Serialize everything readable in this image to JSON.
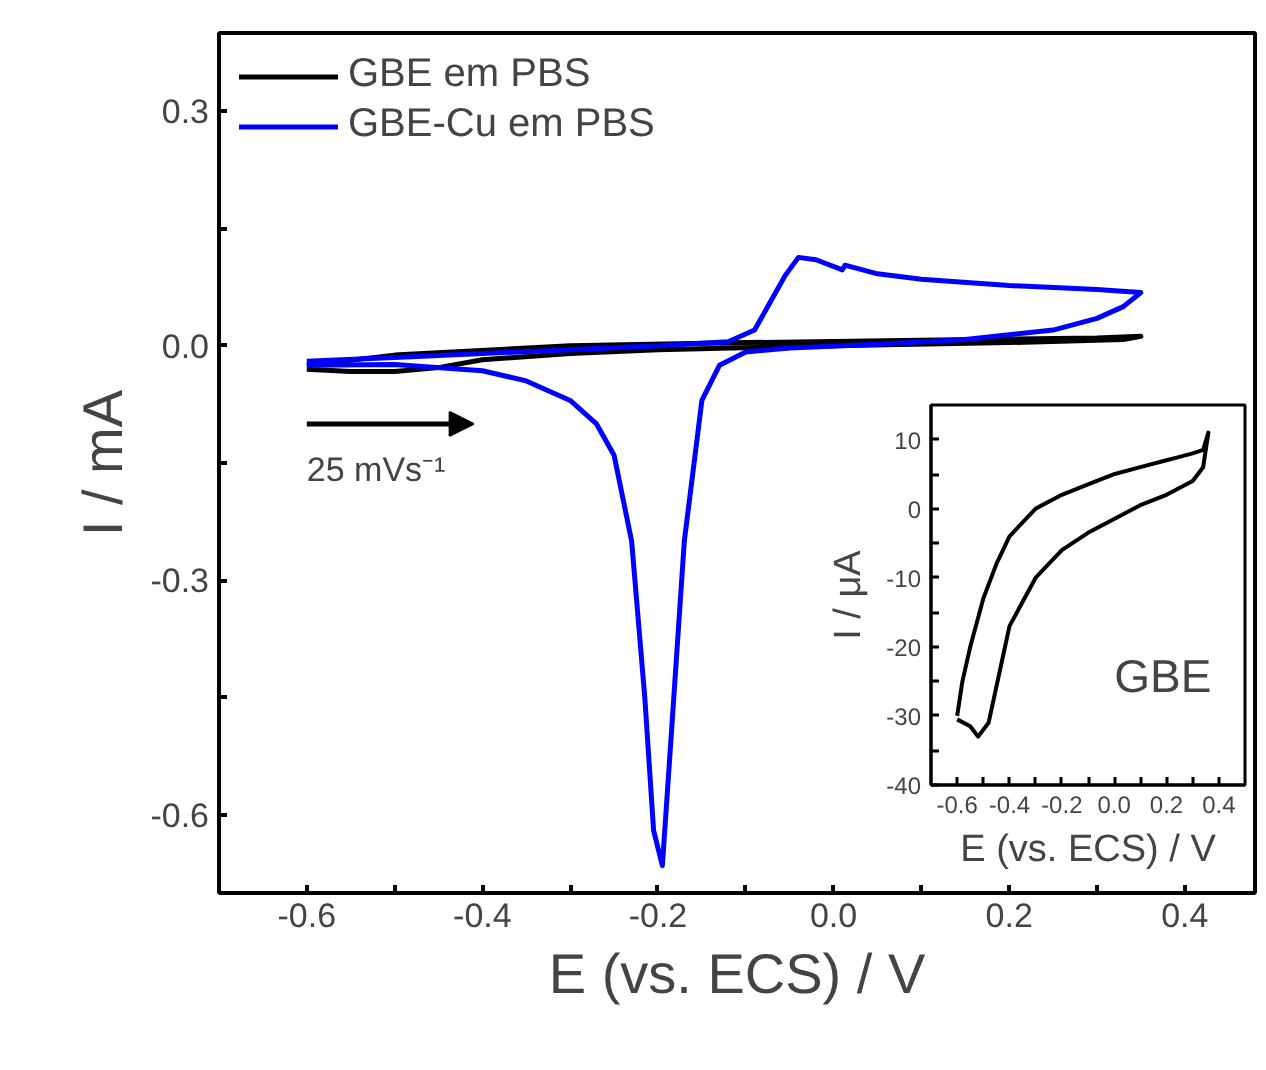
{
  "chart_data": [
    {
      "type": "line",
      "xlabel": "E (vs. ECS) / V",
      "ylabel": "I / mA",
      "legend": "top left",
      "grid": false,
      "marker": "none",
      "line_style": "solid",
      "xlim": [
        -0.7,
        0.48
      ],
      "ylim": [
        -0.7,
        0.4
      ],
      "xticks": [
        -0.6,
        {
          "value": -0.5,
          "label": null
        },
        -0.4,
        {
          "value": -0.3,
          "label": null
        },
        -0.2,
        {
          "value": -0.1,
          "label": null
        },
        {
          "value": 0,
          "label": "0.0"
        },
        {
          "value": 0.1,
          "label": null
        },
        0.2,
        {
          "value": 0.3,
          "label": null
        },
        0.4
      ],
      "yticks": [
        -0.6,
        {
          "value": -0.45,
          "label": null
        },
        -0.3,
        {
          "value": -0.15,
          "label": null
        },
        {
          "value": 0,
          "label": "0.0"
        },
        {
          "value": 0.15,
          "label": null
        },
        0.3
      ],
      "annotations": [
        "25 mVs⁻¹"
      ],
      "series": [
        {
          "name": "GBE em PBS",
          "color": "#000000",
          "x": [
            -0.6,
            -0.55,
            -0.5,
            -0.45,
            -0.4,
            -0.3,
            -0.2,
            0.0,
            0.2,
            0.33,
            0.35,
            0.3,
            0.1,
            -0.1,
            -0.3,
            -0.5,
            -0.6
          ],
          "values": [
            -0.03,
            -0.033,
            -0.033,
            -0.028,
            -0.018,
            -0.01,
            -0.005,
            0.0,
            0.004,
            0.008,
            0.012,
            0.01,
            0.007,
            0.004,
            0.0,
            -0.012,
            -0.025
          ]
        },
        {
          "name": "GBE-Cu em PBS",
          "color": "#0000ff",
          "x": [
            -0.6,
            -0.5,
            -0.4,
            -0.3,
            -0.2,
            -0.12,
            -0.09,
            -0.07,
            -0.055,
            -0.04,
            -0.02,
            0.01,
            0.013,
            0.05,
            0.1,
            0.2,
            0.3,
            0.35,
            0.33,
            0.3,
            0.25,
            0.15,
            0.05,
            -0.05,
            -0.1,
            -0.13,
            -0.15,
            -0.17,
            -0.185,
            -0.195,
            -0.205,
            -0.215,
            -0.23,
            -0.25,
            -0.27,
            -0.3,
            -0.35,
            -0.4,
            -0.5,
            -0.6
          ],
          "values": [
            -0.02,
            -0.015,
            -0.01,
            -0.005,
            0.0,
            0.005,
            0.02,
            0.06,
            0.09,
            0.113,
            0.11,
            0.097,
            0.103,
            0.092,
            0.085,
            0.077,
            0.072,
            0.068,
            0.05,
            0.035,
            0.02,
            0.008,
            0.002,
            -0.003,
            -0.008,
            -0.025,
            -0.07,
            -0.25,
            -0.5,
            -0.665,
            -0.62,
            -0.45,
            -0.25,
            -0.14,
            -0.1,
            -0.07,
            -0.045,
            -0.032,
            -0.024,
            -0.025
          ]
        }
      ]
    },
    {
      "type": "line",
      "xlabel": "E (vs. ECS) / V",
      "ylabel": "I / μA",
      "grid": false,
      "marker": "none",
      "line_style": "solid",
      "xlim": [
        -0.7,
        0.5
      ],
      "ylim": [
        -40,
        15
      ],
      "xticks": [
        -0.6,
        {
          "value": -0.5,
          "label": null
        },
        -0.4,
        {
          "value": -0.3,
          "label": null
        },
        -0.2,
        {
          "value": -0.1,
          "label": null
        },
        {
          "value": 0,
          "label": "0.0"
        },
        {
          "value": 0.1,
          "label": null
        },
        0.2,
        {
          "value": 0.3,
          "label": null
        },
        0.4
      ],
      "yticks": [
        -40,
        {
          "value": -35,
          "label": null
        },
        -30,
        {
          "value": -25,
          "label": null
        },
        -20,
        {
          "value": -15,
          "label": null
        },
        -10,
        {
          "value": -5,
          "label": null
        },
        0,
        {
          "value": 5,
          "label": null
        },
        10
      ],
      "annotations": [
        "GBE"
      ],
      "series": [
        {
          "color": "#000000",
          "x": [
            -0.6,
            -0.55,
            -0.52,
            -0.48,
            -0.44,
            -0.4,
            -0.3,
            -0.2,
            -0.1,
            0.0,
            0.1,
            0.2,
            0.3,
            0.34,
            0.36,
            0.34,
            0.3,
            0.25,
            0.2,
            0.1,
            0.02,
            0.0,
            -0.1,
            -0.2,
            -0.3,
            -0.4,
            -0.45,
            -0.5,
            -0.55,
            -0.58,
            -0.6
          ],
          "values": [
            -30.5,
            -31.5,
            -33,
            -31,
            -24,
            -17,
            -10,
            -6,
            -3.5,
            -1.5,
            0.5,
            2,
            4,
            6,
            11,
            8.5,
            8,
            7.5,
            7,
            6,
            5.2,
            5,
            3.5,
            2,
            0,
            -4,
            -8,
            -13,
            -20,
            -25,
            -30
          ]
        }
      ]
    }
  ]
}
